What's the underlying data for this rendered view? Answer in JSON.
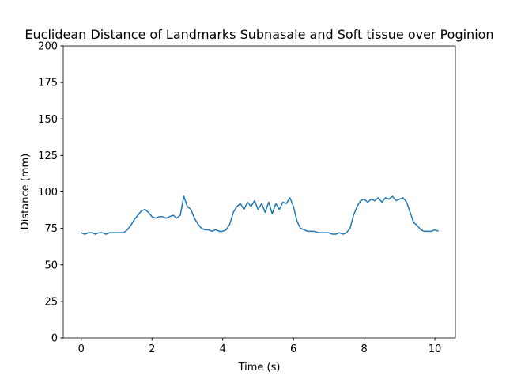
{
  "chart_data": {
    "type": "line",
    "title": "Euclidean Distance of Landmarks Subnasale and Soft tissue over Poginion",
    "x_label": "Time (s)",
    "y_label": "Distance (mm)",
    "x": [
      0.0,
      0.1,
      0.2,
      0.3,
      0.4,
      0.5,
      0.6,
      0.7,
      0.8,
      0.9,
      1.0,
      1.1,
      1.2,
      1.3,
      1.4,
      1.5,
      1.6,
      1.7,
      1.8,
      1.9,
      2.0,
      2.1,
      2.2,
      2.3,
      2.4,
      2.5,
      2.6,
      2.7,
      2.8,
      2.9,
      3.0,
      3.1,
      3.2,
      3.3,
      3.4,
      3.5,
      3.6,
      3.7,
      3.8,
      3.9,
      4.0,
      4.1,
      4.2,
      4.3,
      4.4,
      4.5,
      4.6,
      4.7,
      4.8,
      4.9,
      5.0,
      5.1,
      5.2,
      5.3,
      5.4,
      5.5,
      5.6,
      5.7,
      5.8,
      5.9,
      6.0,
      6.1,
      6.2,
      6.3,
      6.4,
      6.5,
      6.6,
      6.7,
      6.8,
      6.9,
      7.0,
      7.1,
      7.2,
      7.3,
      7.4,
      7.5,
      7.6,
      7.7,
      7.8,
      7.9,
      8.0,
      8.1,
      8.2,
      8.3,
      8.4,
      8.5,
      8.6,
      8.7,
      8.8,
      8.9,
      9.0,
      9.1,
      9.2,
      9.3,
      9.4,
      9.5,
      9.6,
      9.7,
      9.8,
      9.9,
      10.0,
      10.1
    ],
    "series": [
      {
        "color": "#1f77b4",
        "values": [
          72,
          71,
          72,
          72,
          71,
          72,
          72,
          71,
          72,
          72,
          72,
          72,
          72,
          74,
          77,
          81,
          84,
          87,
          88,
          86,
          83,
          82,
          83,
          83,
          82,
          83,
          84,
          82,
          84,
          97,
          90,
          88,
          82,
          78,
          75,
          74,
          74,
          73,
          74,
          73,
          73,
          74,
          78,
          86,
          90,
          92,
          88,
          93,
          90,
          94,
          88,
          92,
          86,
          93,
          85,
          92,
          88,
          93,
          92,
          96,
          90,
          80,
          75,
          74,
          73,
          73,
          73,
          72,
          72,
          72,
          72,
          71,
          71,
          72,
          71,
          72,
          75,
          84,
          90,
          94,
          95,
          93,
          95,
          94,
          96,
          93,
          96,
          95,
          97,
          94,
          95,
          96,
          93,
          86,
          79,
          77,
          74,
          73,
          73,
          73,
          74,
          73
        ]
      }
    ],
    "xlim": [
      -0.51,
      10.58
    ],
    "ylim": [
      0,
      200
    ],
    "xticks": [
      0,
      2,
      4,
      6,
      8,
      10
    ],
    "yticks": [
      0,
      25,
      50,
      75,
      100,
      125,
      150,
      175,
      200
    ],
    "grid": false
  }
}
